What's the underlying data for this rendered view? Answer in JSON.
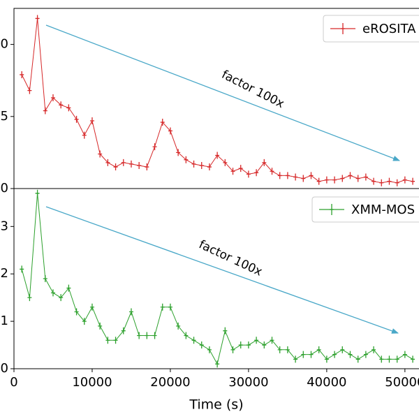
{
  "chart_data": [
    {
      "type": "line",
      "annotation": "factor 100x",
      "legend": "upper right",
      "x": [
        1000,
        2000,
        3000,
        4000,
        5000,
        6000,
        7000,
        8000,
        9000,
        10000,
        11000,
        12000,
        13000,
        14000,
        15000,
        16000,
        17000,
        18000,
        19000,
        20000,
        21000,
        22000,
        23000,
        24000,
        25000,
        26000,
        27000,
        28000,
        29000,
        30000,
        31000,
        32000,
        33000,
        34000,
        35000,
        36000,
        37000,
        38000,
        39000,
        40000,
        41000,
        42000,
        43000,
        44000,
        45000,
        46000,
        47000,
        48000,
        49000,
        50000,
        51000
      ],
      "series": [
        {
          "name": "eROSITA",
          "color": "#d62728",
          "values": [
            7.9,
            6.8,
            11.8,
            5.4,
            6.3,
            5.8,
            5.6,
            4.8,
            3.7,
            4.7,
            2.4,
            1.8,
            1.5,
            1.8,
            1.7,
            1.6,
            1.5,
            2.9,
            4.6,
            4.0,
            2.5,
            2.0,
            1.7,
            1.6,
            1.5,
            2.3,
            1.8,
            1.2,
            1.4,
            1.0,
            1.1,
            1.8,
            1.2,
            0.9,
            0.9,
            0.8,
            0.7,
            0.9,
            0.5,
            0.6,
            0.6,
            0.7,
            0.9,
            0.7,
            0.8,
            0.5,
            0.4,
            0.5,
            0.4,
            0.6,
            0.5
          ]
        }
      ],
      "xlim": [
        0,
        51800
      ],
      "ylim": [
        0,
        12.5
      ],
      "yticks": [
        0,
        5,
        10
      ]
    },
    {
      "type": "line",
      "annotation": "factor 100x",
      "legend": "upper right",
      "xlabel": "Time (s)",
      "x": [
        1000,
        2000,
        3000,
        4000,
        5000,
        6000,
        7000,
        8000,
        9000,
        10000,
        11000,
        12000,
        13000,
        14000,
        15000,
        16000,
        17000,
        18000,
        19000,
        20000,
        21000,
        22000,
        23000,
        24000,
        25000,
        26000,
        27000,
        28000,
        29000,
        30000,
        31000,
        32000,
        33000,
        34000,
        35000,
        36000,
        37000,
        38000,
        39000,
        40000,
        41000,
        42000,
        43000,
        44000,
        45000,
        46000,
        47000,
        48000,
        49000,
        50000,
        51000
      ],
      "series": [
        {
          "name": "XMM-MOS",
          "color": "#2ca02c",
          "values": [
            2.1,
            1.5,
            3.7,
            1.9,
            1.6,
            1.5,
            1.7,
            1.2,
            1.0,
            1.3,
            0.9,
            0.6,
            0.6,
            0.8,
            1.2,
            0.7,
            0.7,
            0.7,
            1.3,
            1.3,
            0.9,
            0.7,
            0.6,
            0.5,
            0.4,
            0.1,
            0.8,
            0.4,
            0.5,
            0.5,
            0.6,
            0.5,
            0.6,
            0.4,
            0.4,
            0.2,
            0.3,
            0.3,
            0.4,
            0.2,
            0.3,
            0.4,
            0.3,
            0.2,
            0.3,
            0.4,
            0.2,
            0.2,
            0.2,
            0.3,
            0.2
          ]
        }
      ],
      "xlim": [
        0,
        51800
      ],
      "ylim": [
        0,
        3.8
      ],
      "yticks": [
        0,
        1,
        2,
        3
      ],
      "xticks": [
        0,
        10000,
        20000,
        30000,
        40000,
        50000
      ]
    }
  ]
}
